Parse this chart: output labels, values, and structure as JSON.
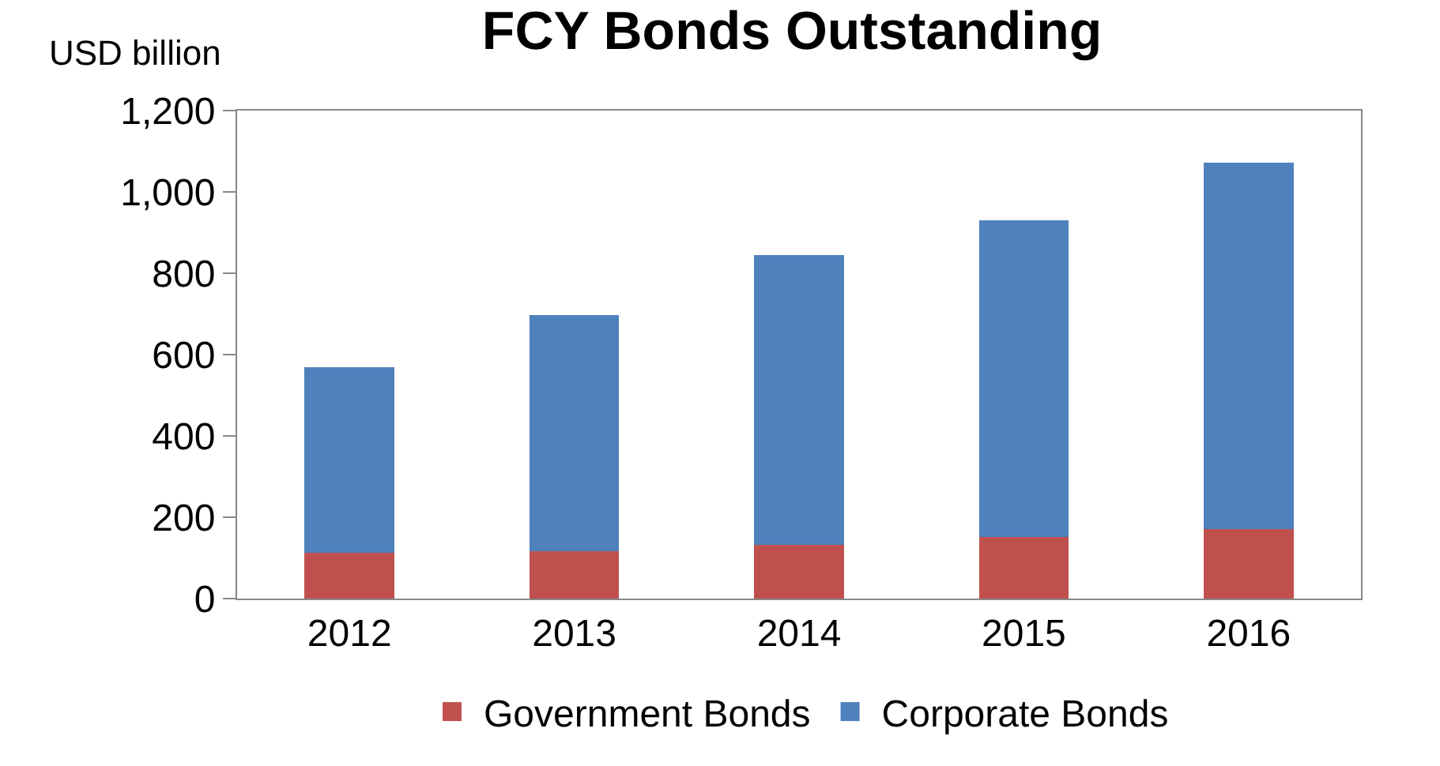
{
  "chart_data": {
    "type": "bar",
    "title": "FCY Bonds Outstanding",
    "ylabel": "USD billion",
    "categories": [
      "2012",
      "2013",
      "2014",
      "2015",
      "2016"
    ],
    "stacked": true,
    "series": [
      {
        "name": "Government Bonds",
        "color": "#c0504d",
        "values": [
          113,
          117,
          133,
          152,
          171
        ]
      },
      {
        "name": "Corporate Bonds",
        "color": "#4f81bd",
        "values": [
          456,
          580,
          712,
          779,
          900
        ]
      }
    ],
    "ylim": [
      0,
      1200
    ],
    "yticks": [
      0,
      {
        "value": 200,
        "label": "200"
      },
      {
        "value": 400,
        "label": "400"
      },
      {
        "value": 600,
        "label": "600"
      },
      {
        "value": 800,
        "label": "800"
      },
      {
        "value": 1000,
        "label": "1,000"
      },
      {
        "value": 1200,
        "label": "1,200"
      }
    ],
    "grid": false,
    "legend": "bottom"
  }
}
